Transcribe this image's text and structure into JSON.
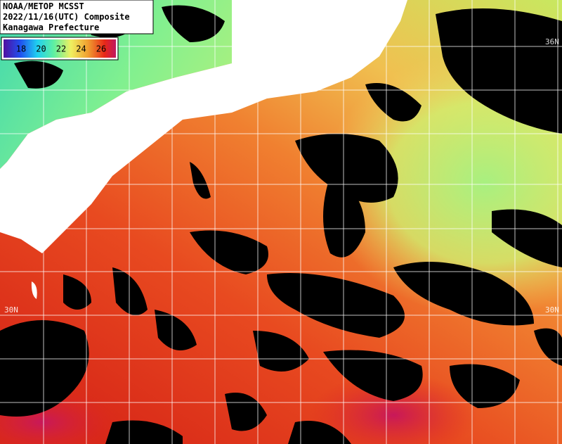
{
  "header": {
    "lines": [
      "NOAA/METOP MCSST",
      "2022/11/16(UTC) Composite",
      "Kanagawa Prefecture"
    ]
  },
  "colorbar": {
    "labels": [
      18,
      20,
      22,
      24,
      26
    ]
  },
  "grid_labels": [
    "36N",
    "30N",
    "30N"
  ]
}
